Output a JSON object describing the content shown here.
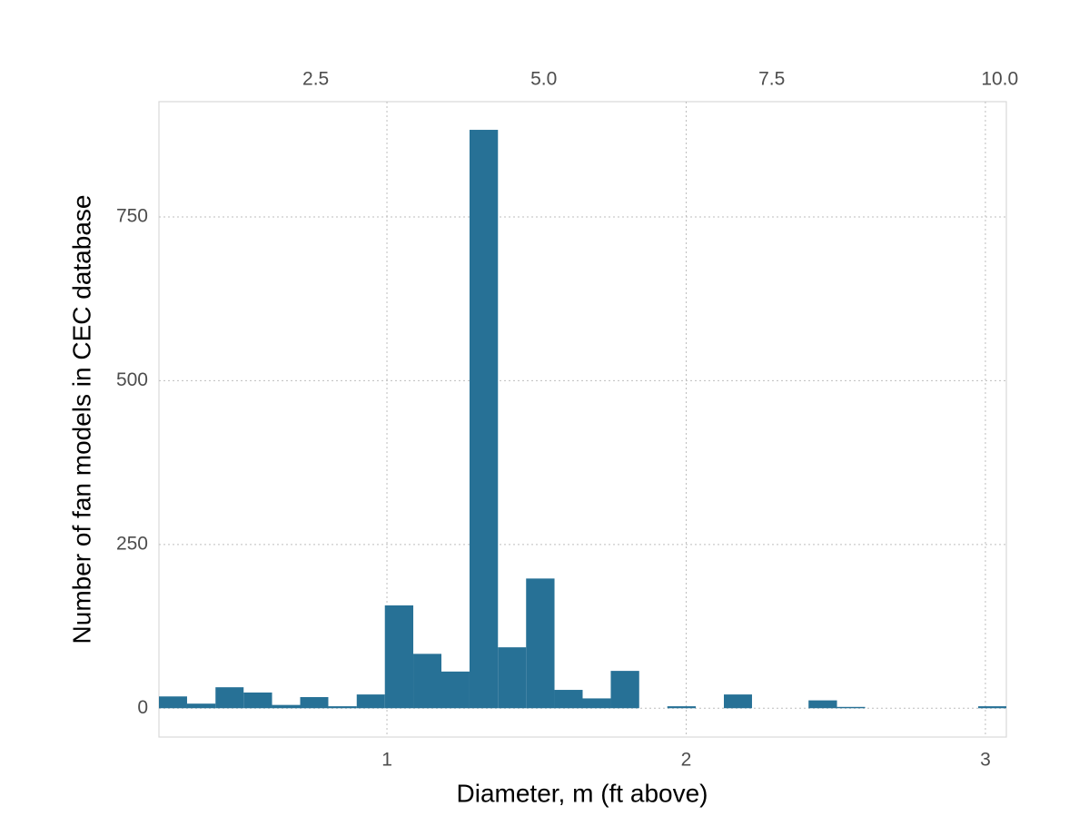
{
  "chart_data": {
    "type": "histogram",
    "xlabel": "Diameter, m (ft above)",
    "ylabel": "Number of fan models in CEC database",
    "color": "#277196",
    "bins": [
      0.238,
      0.332,
      0.427,
      0.521,
      0.616,
      0.71,
      0.804,
      0.899,
      0.993,
      1.088,
      1.182,
      1.276,
      1.371,
      1.465,
      1.56,
      1.654,
      1.748,
      1.843,
      1.937,
      2.032,
      2.126,
      2.22,
      2.315,
      2.409,
      2.504,
      2.598,
      2.692,
      2.787,
      2.881,
      2.976,
      3.07
    ],
    "counts": [
      18,
      7,
      32,
      24,
      5,
      17,
      3,
      21,
      157,
      83,
      56,
      883,
      93,
      198,
      28,
      15,
      57,
      0,
      3,
      0,
      21,
      0,
      0,
      12,
      2,
      0,
      0,
      0,
      0,
      3
    ],
    "xlim": [
      0.238,
      3.07
    ],
    "xticks": [
      1,
      2,
      3
    ],
    "x2lim": [
      0.781,
      10.072
    ],
    "x2ticks": [
      2.5,
      {
        "value": 5,
        "label": "5.0"
      },
      7.5,
      {
        "value": 10,
        "label": "10.0"
      }
    ],
    "ylim": [
      -44,
      926
    ],
    "yticks": [
      0,
      250,
      500,
      750
    ],
    "grid": true
  }
}
